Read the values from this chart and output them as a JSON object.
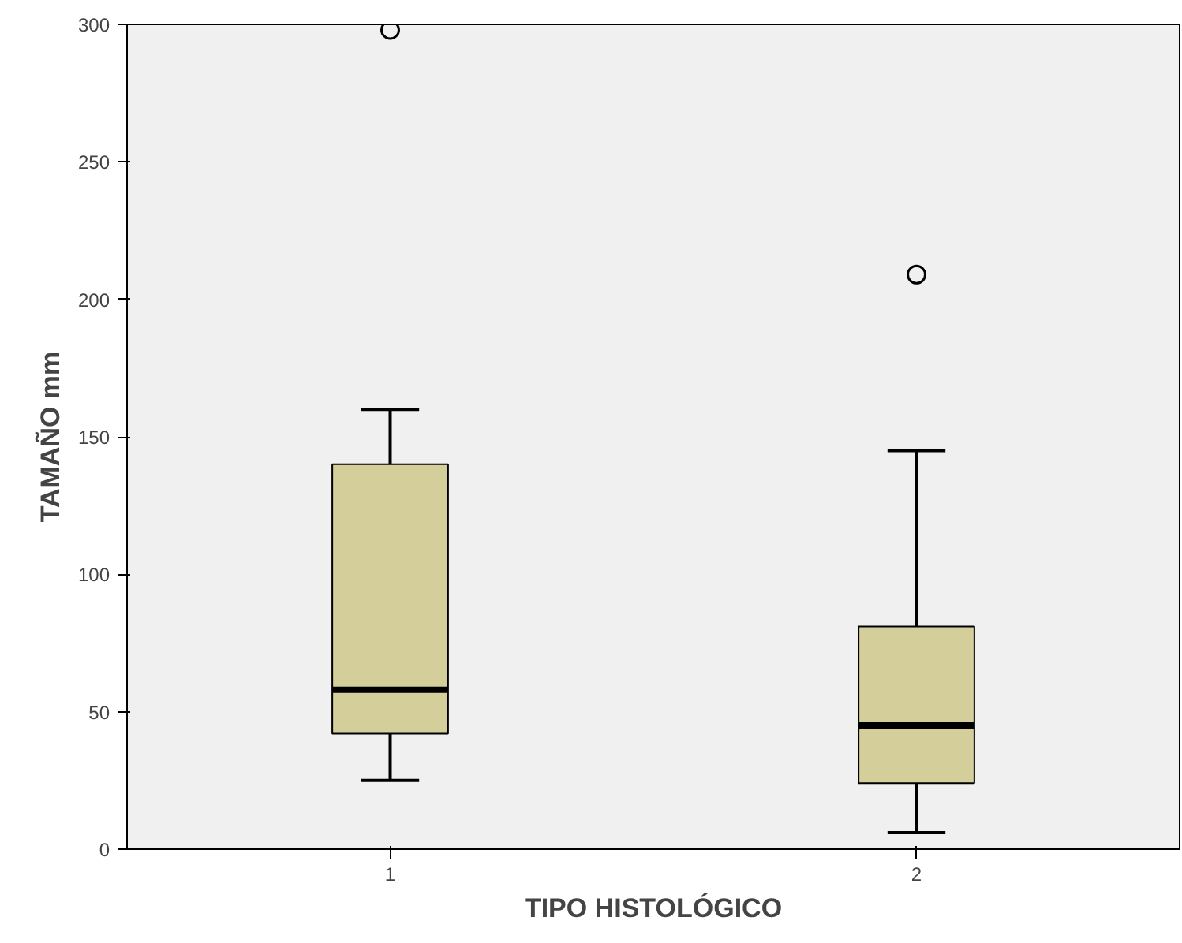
{
  "chart_data": {
    "type": "box",
    "xlabel": "TIPO HISTOLÓGICO",
    "ylabel": "TAMAÑO mm",
    "categories": [
      "1",
      "2"
    ],
    "boxes": [
      {
        "low": 25,
        "q1": 42,
        "median": 58,
        "q3": 140,
        "high": 160,
        "outliers": [
          298
        ]
      },
      {
        "low": 6,
        "q1": 24,
        "median": 45,
        "q3": 81,
        "high": 145,
        "outliers": [
          209
        ]
      }
    ],
    "color": "#d3ce9a",
    "ylim": [
      0,
      300
    ],
    "yticks": [
      0,
      50,
      100,
      150,
      200,
      250,
      300
    ],
    "grid": false
  }
}
